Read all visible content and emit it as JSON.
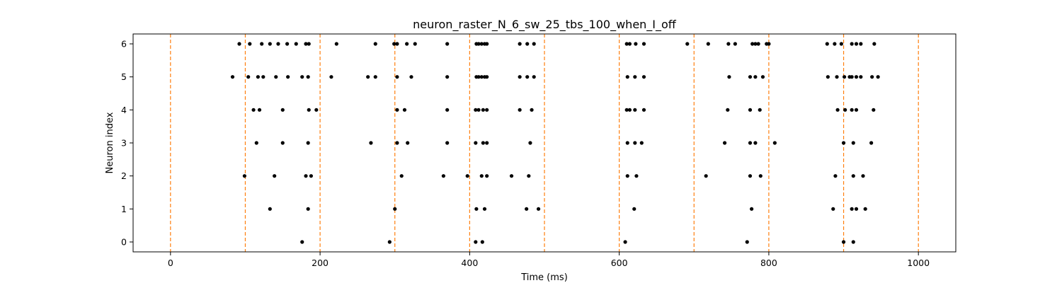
{
  "chart_data": {
    "type": "scatter",
    "title": "neuron_raster_N_6_sw_25_tbs_100_when_I_off",
    "xlabel": "Time (ms)",
    "ylabel": "Neuron index",
    "xlim": [
      -50,
      1050
    ],
    "ylim": [
      -0.3,
      6.3
    ],
    "x_ticks": [
      0,
      200,
      400,
      600,
      800,
      1000
    ],
    "y_ticks": [
      0,
      1,
      2,
      3,
      4,
      5,
      6
    ],
    "grid": false,
    "marker_color": "#000000",
    "vline_color": "#ff7f0e",
    "vlines": [
      0,
      100,
      200,
      300,
      400,
      500,
      600,
      700,
      800,
      900,
      1000
    ],
    "series": [
      {
        "neuron": 6,
        "x": [
          92,
          106,
          122,
          133,
          144,
          156,
          168,
          181,
          185,
          222,
          274,
          299,
          303,
          316,
          327,
          370,
          409,
          412,
          416,
          420,
          423,
          467,
          477,
          486,
          610,
          614,
          622,
          633,
          691,
          719,
          746,
          755,
          778,
          782,
          786,
          797,
          800,
          878,
          888,
          897,
          911,
          917,
          923,
          941
        ]
      },
      {
        "neuron": 5,
        "x": [
          83,
          104,
          117,
          124,
          141,
          157,
          176,
          184,
          215,
          264,
          274,
          303,
          322,
          370,
          409,
          412,
          416,
          420,
          423,
          467,
          477,
          486,
          611,
          621,
          633,
          747,
          775,
          782,
          792,
          879,
          891,
          901,
          908,
          911,
          917,
          923,
          938,
          946
        ]
      },
      {
        "neuron": 4,
        "x": [
          111,
          119,
          150,
          185,
          195,
          303,
          313,
          370,
          408,
          412,
          418,
          423,
          467,
          483,
          610,
          614,
          621,
          633,
          745,
          775,
          788,
          892,
          902,
          911,
          917,
          940
        ]
      },
      {
        "neuron": 3,
        "x": [
          115,
          150,
          184,
          268,
          303,
          317,
          370,
          408,
          418,
          423,
          481,
          611,
          621,
          630,
          741,
          775,
          782,
          808,
          900,
          913,
          937
        ]
      },
      {
        "neuron": 2,
        "x": [
          99,
          139,
          181,
          188,
          309,
          365,
          397,
          416,
          423,
          456,
          479,
          611,
          623,
          716,
          775,
          789,
          889,
          913,
          926
        ]
      },
      {
        "neuron": 1,
        "x": [
          133,
          184,
          300,
          409,
          420,
          476,
          492,
          620,
          777,
          886,
          911,
          917,
          929
        ]
      },
      {
        "neuron": 0,
        "x": [
          176,
          293,
          408,
          417,
          608,
          771,
          900,
          913
        ]
      }
    ]
  }
}
